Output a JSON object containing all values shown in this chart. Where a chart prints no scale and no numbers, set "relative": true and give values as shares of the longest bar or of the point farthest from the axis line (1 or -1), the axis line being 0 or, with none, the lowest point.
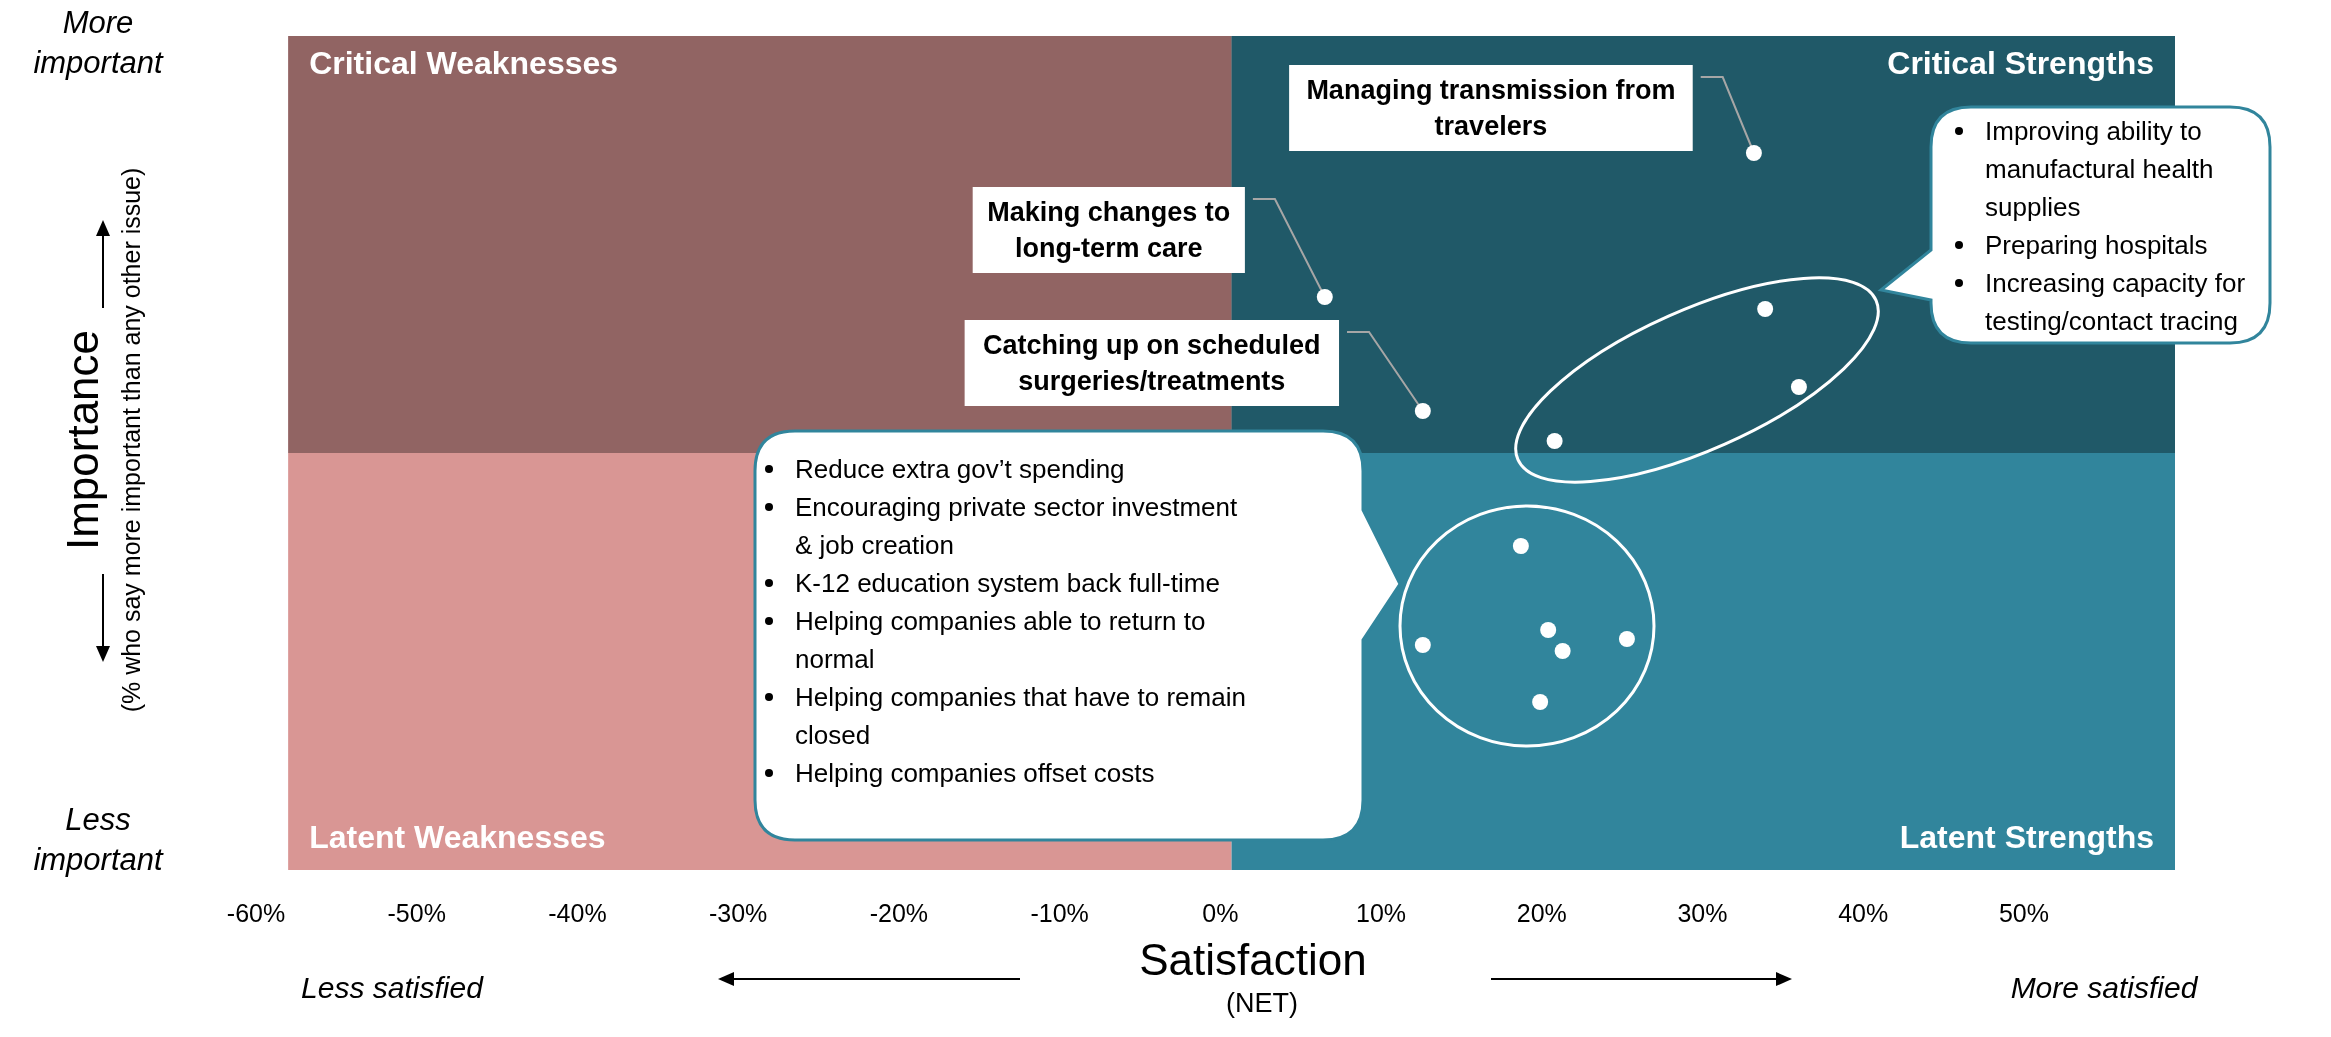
{
  "chart_data": {
    "type": "scatter",
    "xlabel": "Satisfaction\n(NET)",
    "ylabel": "Importance\n(% who say more important than any other issue)",
    "relative": true,
    "xlim": [
      -60,
      59.4
    ],
    "xticks": [
      {
        "value": -60,
        "label": "-60%"
      },
      {
        "value": -50,
        "label": "-50%"
      },
      {
        "value": -40,
        "label": "-40%"
      },
      {
        "value": -30,
        "label": "-30%"
      },
      {
        "value": -20,
        "label": "-20%"
      },
      {
        "value": -10,
        "label": "-10%"
      },
      {
        "value": 0,
        "label": "0%"
      },
      {
        "value": 10,
        "label": "10%"
      },
      {
        "value": 20,
        "label": "20%"
      },
      {
        "value": 30,
        "label": "30%"
      },
      {
        "value": 40,
        "label": "40%"
      },
      {
        "value": 50,
        "label": "50%"
      }
    ],
    "marker": "circle",
    "series": [
      {
        "color": "#ffffff",
        "x": [
          33.2,
          6.5,
          12.6,
          20.8,
          33.9,
          36.0,
          18.7,
          12.6,
          20.4,
          21.3,
          25.3,
          19.9
        ],
        "values": [
          1.0,
          0.52,
          0.14,
          0.04,
          0.48,
          0.22,
          -0.31,
          -0.64,
          -0.59,
          -0.66,
          -0.62,
          -0.83
        ]
      }
    ],
    "bands": [
      {
        "axis": "x",
        "from": -58,
        "to": 0.7,
        "color": "#d99694"
      },
      {
        "axis": "x",
        "from": 0.7,
        "to": 59.4,
        "color": "#31859c"
      },
      {
        "axis": "y",
        "from": 0,
        "to": 1.39,
        "color": "#000000"
      }
    ],
    "annotations": [
      "Critical Weaknesses",
      "Critical Strengths",
      "Latent Weaknesses",
      "Latent Strengths",
      "More\nimportant",
      "Less\nimportant",
      "Less satisfied",
      "More satisfied",
      {
        "text": "Managing transmission from travelers",
        "x": 33.2,
        "y": 1.0
      },
      {
        "text": "Making changes to long-term care",
        "x": 6.5,
        "y": 0.52
      },
      {
        "text": "Catching up on scheduled surgeries/treatments",
        "x": 12.6,
        "y": 0.14
      },
      "Improving ability to manufactural health supplies\nPreparing hospitals\nIncreasing capacity for testing/contact tracing",
      "Reduce extra gov’t spending\nEncouraging private sector investment & job creation\nK-12 education system back full-time\nHelping companies able to return to normal\nHelping companies that have to remain closed\nHelping companies offset costs"
    ]
  }
}
